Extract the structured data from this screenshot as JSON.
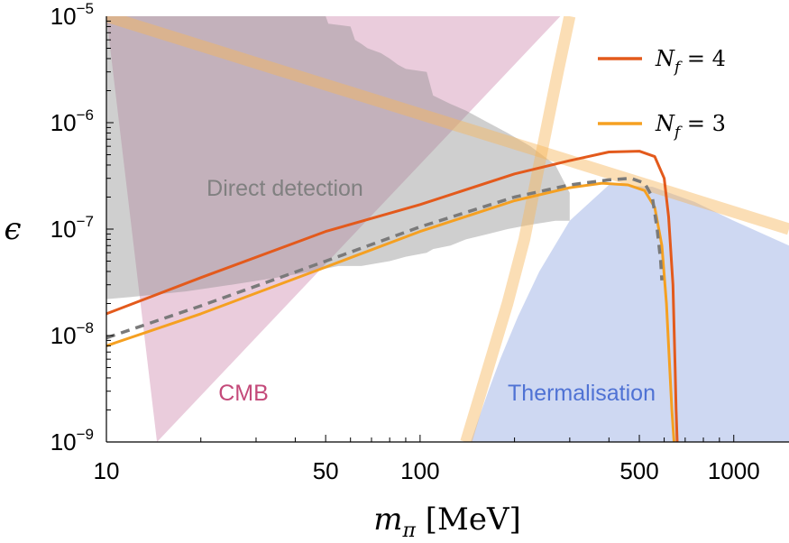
{
  "chart_data": {
    "type": "line",
    "x_scale": "log",
    "y_scale": "log",
    "xlim": [
      10,
      1500
    ],
    "ylim": [
      1e-09,
      1e-05
    ],
    "xlabel": "m_π [MeV]",
    "xlabel_parts": {
      "symbol": "m",
      "sub": "π",
      "unit": "[MeV]"
    },
    "ylabel": "ϵ",
    "x_ticks": [
      {
        "value": 10,
        "label": "10"
      },
      {
        "value": 50,
        "label": "50"
      },
      {
        "value": 100,
        "label": "100"
      },
      {
        "value": 500,
        "label": "500"
      },
      {
        "value": 1000,
        "label": "1000"
      }
    ],
    "y_ticks": [
      {
        "value": 1e-09,
        "base": "10",
        "exp": "−9"
      },
      {
        "value": 1e-08,
        "base": "10",
        "exp": "−8"
      },
      {
        "value": 1e-07,
        "base": "10",
        "exp": "−7"
      },
      {
        "value": 1e-06,
        "base": "10",
        "exp": "−6"
      },
      {
        "value": 1e-05,
        "base": "10",
        "exp": "−5"
      }
    ],
    "legend": {
      "placement": "top-right",
      "entries": [
        {
          "series": "Nf4",
          "label_base": "N",
          "label_sub": "f",
          "label_rest": " = 4"
        },
        {
          "series": "Nf3",
          "label_base": "N",
          "label_sub": "f",
          "label_rest": " = 3"
        }
      ]
    },
    "regions": [
      {
        "name": "CMB",
        "label": "CMB",
        "color": "#c97aa2",
        "opacity": 0.38,
        "label_color": "#c44a7a",
        "boundary_x": [
          10,
          280,
          14.5
        ],
        "boundary_y": [
          1e-05,
          1e-05,
          1e-09
        ]
      },
      {
        "name": "Thermalisation",
        "label": "Thermalisation",
        "color": "#8aa2e0",
        "opacity": 0.42,
        "label_color": "#4f72d4",
        "boundary_x": [
          145,
          152,
          165,
          180,
          205,
          240,
          300,
          400,
          550,
          750,
          1000,
          1500,
          1500,
          145
        ],
        "boundary_y": [
          1e-09,
          1.5e-09,
          3e-09,
          6e-09,
          1.5e-08,
          4e-08,
          1.2e-07,
          2.6e-07,
          2.5e-07,
          1.8e-07,
          1.2e-07,
          7e-08,
          1e-09,
          1e-09
        ]
      },
      {
        "name": "Direct detection",
        "label": "Direct detection",
        "color": "#8c8c8c",
        "opacity": 0.42,
        "label_color": "#808080",
        "boundary_x": [
          10,
          50,
          51,
          60,
          62,
          65,
          68,
          75,
          80,
          85,
          90,
          105,
          110,
          125,
          140,
          165,
          190,
          225,
          270,
          300,
          300,
          270,
          225,
          190,
          165,
          140,
          125,
          110,
          105,
          90,
          80,
          65,
          55,
          45,
          35,
          25,
          18,
          12,
          10
        ],
        "boundary_y": [
          1e-05,
          1e-05,
          8.5e-06,
          8e-06,
          6e-06,
          5.5e-06,
          5e-06,
          4.5e-06,
          4e-06,
          3.5e-06,
          3.2e-06,
          3e-06,
          1.8e-06,
          1.5e-06,
          1.3e-06,
          1e-06,
          8e-07,
          6e-07,
          4e-07,
          2.2e-07,
          1.2e-07,
          1.2e-07,
          1.1e-07,
          1e-07,
          9e-08,
          8e-08,
          7e-08,
          6.5e-08,
          6e-08,
          5.5e-08,
          5e-08,
          4.5e-08,
          4.5e-08,
          4e-08,
          3.5e-08,
          3e-08,
          2.6e-08,
          2.3e-08,
          2.2e-08
        ]
      }
    ],
    "bands": [
      {
        "name": "diagonal-band",
        "color": "#f6b55a",
        "opacity": 0.45,
        "x": [
          10,
          1500
        ],
        "y": [
          1e-05,
          1e-07
        ]
      },
      {
        "name": "vertical-band",
        "color": "#f6b55a",
        "opacity": 0.45,
        "x": [
          140,
          165,
          190,
          215,
          235,
          255,
          275,
          300
        ],
        "y": [
          1e-09,
          5e-09,
          2e-08,
          8e-08,
          3e-07,
          1e-06,
          3e-06,
          1e-05
        ]
      }
    ],
    "series": [
      {
        "name": "Nf4",
        "color": "#e35a1c",
        "dash": false,
        "x": [
          10,
          20,
          50,
          100,
          200,
          300,
          400,
          500,
          560,
          600,
          620,
          640,
          650,
          655,
          660
        ],
        "y": [
          1.6e-08,
          3.5e-08,
          9.5e-08,
          1.7e-07,
          3.3e-07,
          4.4e-07,
          5.3e-07,
          5.4e-07,
          4.8e-07,
          3e-07,
          1.3e-07,
          3e-08,
          5e-09,
          2e-09,
          1e-09
        ]
      },
      {
        "name": "Nf3",
        "color": "#f5a021",
        "dash": false,
        "x": [
          10,
          20,
          50,
          100,
          200,
          300,
          380,
          460,
          520,
          560,
          590,
          610,
          625,
          635,
          645
        ],
        "y": [
          8e-09,
          1.6e-08,
          4.4e-08,
          9.5e-08,
          1.85e-07,
          2.45e-07,
          2.7e-07,
          2.6e-07,
          2.3e-07,
          1.6e-07,
          7e-08,
          2e-08,
          5e-09,
          2e-09,
          1e-09
        ]
      },
      {
        "name": "dashed",
        "color": "#7a7a7a",
        "dash": true,
        "x": [
          10,
          20,
          50,
          100,
          200,
          300,
          400,
          470,
          520,
          550,
          570,
          585,
          590
        ],
        "y": [
          9.5e-09,
          1.9e-08,
          5e-08,
          1.05e-07,
          2e-07,
          2.6e-07,
          2.9e-07,
          3e-07,
          2.7e-07,
          2e-07,
          1e-07,
          5e-08,
          3.3e-08
        ]
      }
    ]
  }
}
